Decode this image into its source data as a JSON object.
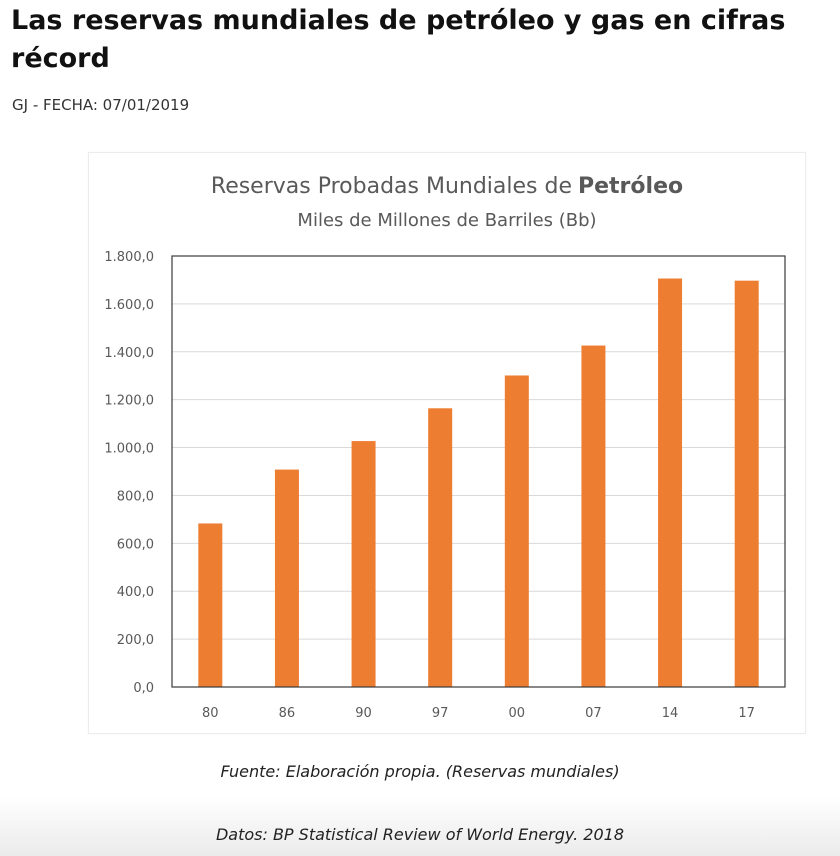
{
  "article": {
    "title": "Las reservas mundiales de petróleo y gas en cifras récord",
    "byline": "GJ - FECHA: 07/01/2019"
  },
  "chart_data": {
    "type": "bar",
    "title_regular": "Reservas Probadas Mundiales de",
    "title_bold": "Petróleo",
    "subtitle": "Miles de Millones de Barriles (Bb)",
    "xlabel": "",
    "ylabel": "",
    "categories": [
      "80",
      "86",
      "90",
      "97",
      "00",
      "07",
      "14",
      "17"
    ],
    "values": [
      683,
      908,
      1027,
      1164,
      1301,
      1426,
      1706,
      1697
    ],
    "ylim": [
      0,
      1800
    ],
    "yticks": [
      0,
      200,
      400,
      600,
      800,
      1000,
      1200,
      1400,
      1600,
      1800
    ],
    "ytick_labels": [
      "0,0",
      "200,0",
      "400,0",
      "600,0",
      "800,0",
      "1.000,0",
      "1.200,0",
      "1.400,0",
      "1.600,0",
      "1.800,0"
    ],
    "grid": true,
    "legend": "none",
    "bar_color": "#ED7D31",
    "grid_color": "#D9D9D9",
    "text_color": "#595959"
  },
  "captions": {
    "source": "Fuente: Elaboración propia. (Reservas mundiales)",
    "data": "Datos: BP Statistical Review of World Energy. 2018"
  }
}
